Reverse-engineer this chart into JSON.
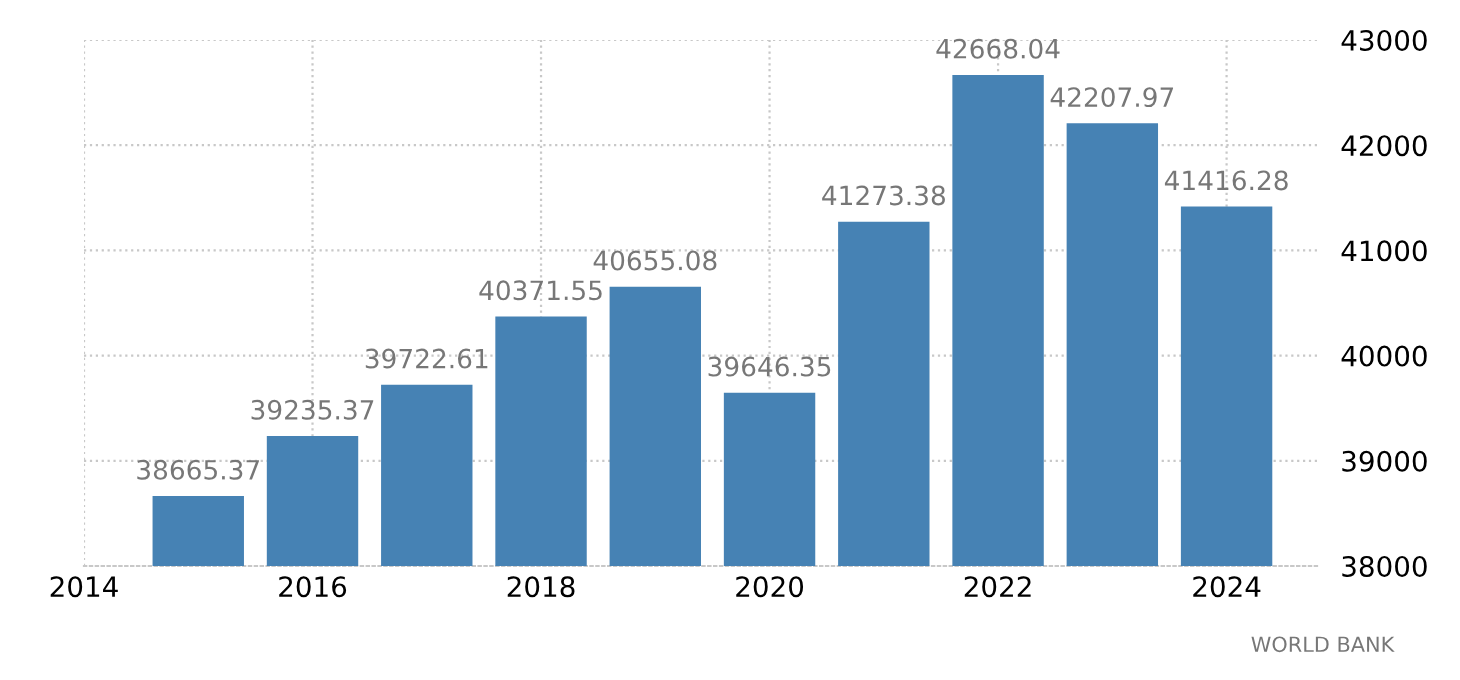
{
  "chart_data": {
    "type": "bar",
    "x": [
      2015,
      2016,
      2017,
      2018,
      2019,
      2020,
      2021,
      2022,
      2023,
      2024
    ],
    "values": [
      38665.37,
      39235.37,
      39722.61,
      40371.55,
      40655.08,
      39646.35,
      41273.38,
      42668.04,
      42207.97,
      41416.28
    ],
    "color": "#4682b4",
    "data_labels": true,
    "xlim": [
      2014,
      2024.8
    ],
    "xticks": [
      2014,
      2016,
      2018,
      2020,
      2022,
      2024
    ],
    "ylim": [
      38000,
      43000
    ],
    "yticks": [
      38000,
      39000,
      40000,
      41000,
      42000,
      43000
    ],
    "grid": true,
    "annotations": [
      "WORLD BANK"
    ]
  }
}
